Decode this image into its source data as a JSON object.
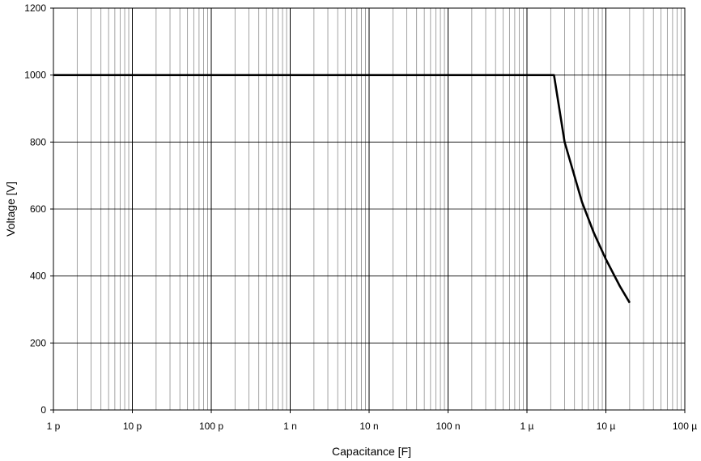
{
  "chart_data": {
    "type": "line",
    "title": "",
    "xlabel": "Capacitance [F]",
    "ylabel": "Voltage [V]",
    "x_scale": "log",
    "xlim": [
      1e-12,
      0.0001
    ],
    "ylim": [
      0,
      1200
    ],
    "grid": true,
    "legend": "none",
    "x_ticks": [
      {
        "value": 1e-12,
        "label": "1 p"
      },
      {
        "value": 1e-11,
        "label": "10 p"
      },
      {
        "value": 1e-10,
        "label": "100 p"
      },
      {
        "value": 1e-09,
        "label": "1 n"
      },
      {
        "value": 1e-08,
        "label": "10 n"
      },
      {
        "value": 1e-07,
        "label": "100 n"
      },
      {
        "value": 1e-06,
        "label": "1 µ"
      },
      {
        "value": 1e-05,
        "label": "10 µ"
      },
      {
        "value": 0.0001,
        "label": "100 µ"
      }
    ],
    "y_ticks": [
      {
        "value": 0,
        "label": "0"
      },
      {
        "value": 200,
        "label": "200"
      },
      {
        "value": 400,
        "label": "400"
      },
      {
        "value": 600,
        "label": "600"
      },
      {
        "value": 800,
        "label": "800"
      },
      {
        "value": 1000,
        "label": "1000"
      },
      {
        "value": 1200,
        "label": "1200"
      }
    ],
    "series": [
      {
        "color": "#000000",
        "x": [
          1e-12,
          2.2e-06,
          3e-06,
          5e-06,
          7e-06,
          1e-05,
          1.5e-05,
          2e-05
        ],
        "y": [
          1000,
          1000,
          800,
          620,
          530,
          450,
          370,
          320
        ]
      }
    ]
  }
}
